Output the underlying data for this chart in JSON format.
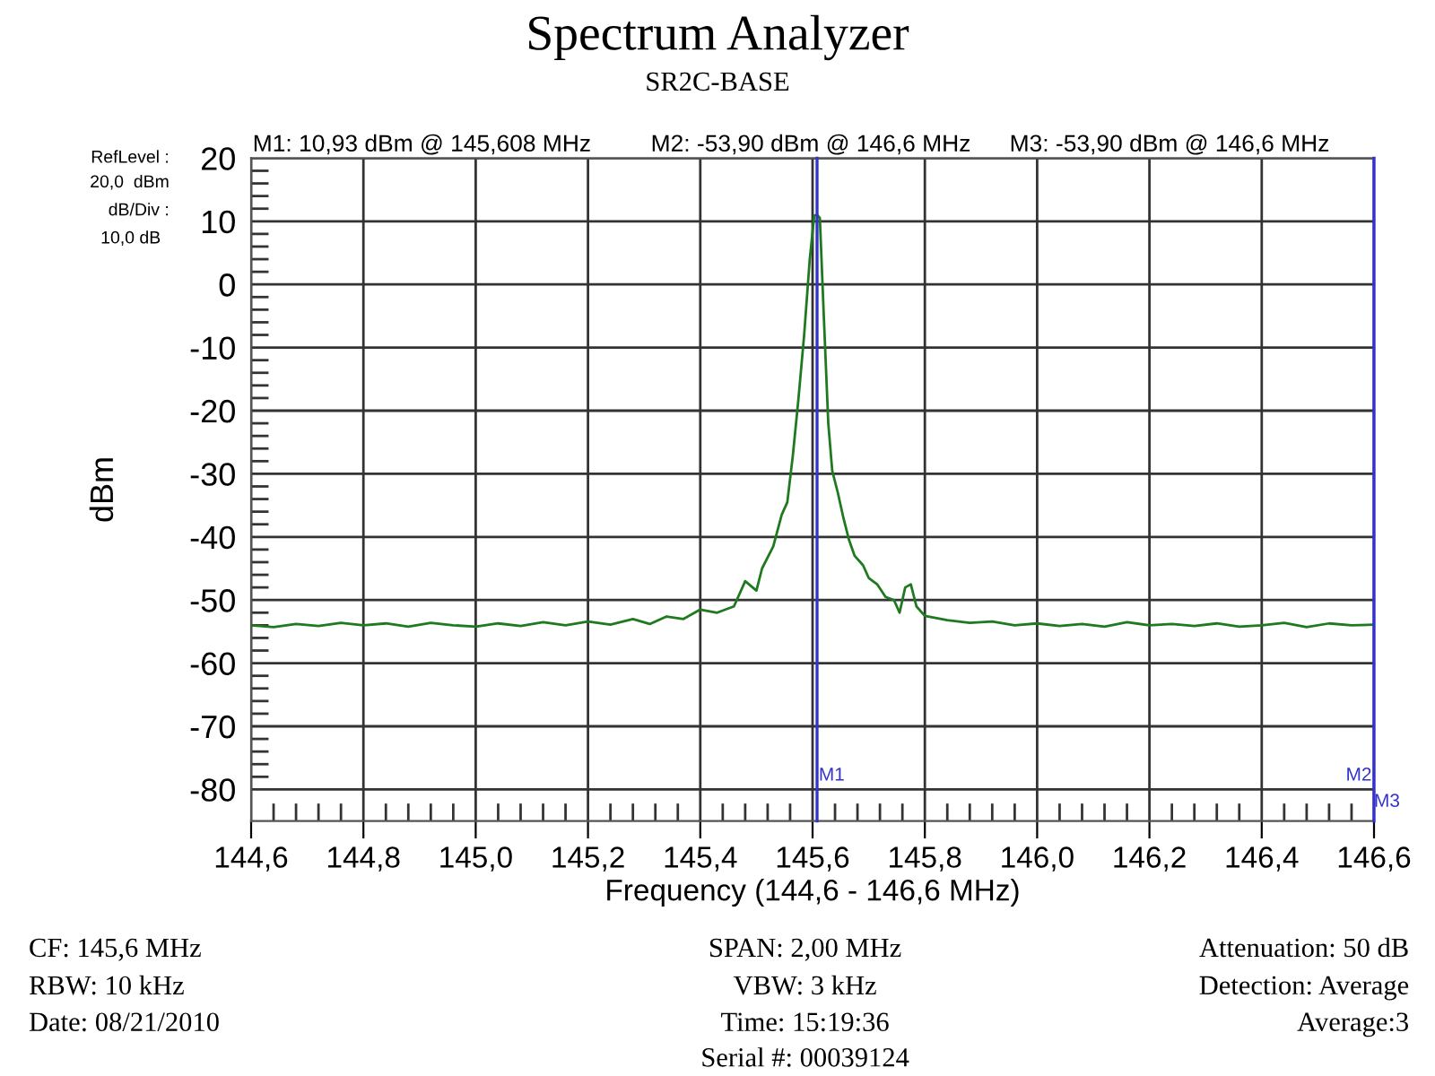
{
  "chart_data": {
    "type": "line",
    "title": "Spectrum Analyzer",
    "subtitle": "SR2C-BASE",
    "xlabel": "Frequency (144,6 - 146,6 MHz)",
    "ylabel": "dBm",
    "x": [
      144.6,
      144.64,
      144.68,
      144.72,
      144.76,
      144.8,
      144.84,
      144.88,
      144.92,
      144.96,
      145.0,
      145.04,
      145.08,
      145.12,
      145.16,
      145.2,
      145.24,
      145.28,
      145.31,
      145.34,
      145.37,
      145.4,
      145.43,
      145.46,
      145.48,
      145.5,
      145.51,
      145.53,
      145.545,
      145.555,
      145.565,
      145.575,
      145.585,
      145.595,
      145.603,
      145.608,
      145.613,
      145.62,
      145.628,
      145.635,
      145.645,
      145.655,
      145.665,
      145.675,
      145.69,
      145.7,
      145.715,
      145.73,
      145.745,
      145.755,
      145.765,
      145.775,
      145.785,
      145.8,
      145.84,
      145.88,
      145.92,
      145.96,
      146.0,
      146.04,
      146.08,
      146.12,
      146.16,
      146.2,
      146.24,
      146.28,
      146.32,
      146.36,
      146.4,
      146.44,
      146.48,
      146.52,
      146.56,
      146.6
    ],
    "series": [
      {
        "color": "#1f7a1f",
        "values": [
          -54.0,
          -54.3,
          -53.8,
          -54.1,
          -53.6,
          -54.0,
          -53.7,
          -54.2,
          -53.6,
          -54.0,
          -54.2,
          -53.7,
          -54.1,
          -53.5,
          -54.0,
          -53.4,
          -53.9,
          -53.0,
          -53.8,
          -52.6,
          -53.0,
          -51.5,
          -52.0,
          -51.0,
          -47.0,
          -48.5,
          -45.0,
          -41.5,
          -36.5,
          -34.5,
          -27.0,
          -18.0,
          -8.0,
          4.0,
          10.9,
          11.0,
          10.5,
          -5.0,
          -22.0,
          -29.5,
          -33.0,
          -37.0,
          -40.5,
          -43.0,
          -44.5,
          -46.5,
          -47.5,
          -49.5,
          -50.0,
          -52.0,
          -48.0,
          -47.5,
          -51.0,
          -52.5,
          -53.2,
          -53.6,
          -53.4,
          -54.0,
          -53.7,
          -54.1,
          -53.8,
          -54.2,
          -53.5,
          -54.0,
          -53.8,
          -54.1,
          -53.7,
          -54.2,
          -54.0,
          -53.6,
          -54.3,
          -53.7,
          -54.0,
          -53.9
        ]
      }
    ],
    "xlim": [
      144.6,
      146.6
    ],
    "ylim": [
      -85,
      20
    ],
    "xticks": [
      {
        "value": 144.6,
        "label": "144,6"
      },
      {
        "value": 144.8,
        "label": "144,8"
      },
      {
        "value": 145.0,
        "label": "145,0"
      },
      {
        "value": 145.2,
        "label": "145,2"
      },
      {
        "value": 145.4,
        "label": "145,4"
      },
      {
        "value": 145.6,
        "label": "145,6"
      },
      {
        "value": 145.8,
        "label": "145,8"
      },
      {
        "value": 146.0,
        "label": "146,0"
      },
      {
        "value": 146.2,
        "label": "146,2"
      },
      {
        "value": 146.4,
        "label": "146,4"
      },
      {
        "value": 146.6,
        "label": "146,6"
      },
      {
        "value": 144.64,
        "label": null
      },
      {
        "value": 144.68,
        "label": null
      },
      {
        "value": 144.72,
        "label": null
      },
      {
        "value": 144.76,
        "label": null
      },
      {
        "value": 144.84,
        "label": null
      },
      {
        "value": 144.88,
        "label": null
      },
      {
        "value": 144.92,
        "label": null
      },
      {
        "value": 144.96,
        "label": null
      },
      {
        "value": 145.04,
        "label": null
      },
      {
        "value": 145.08,
        "label": null
      },
      {
        "value": 145.12,
        "label": null
      },
      {
        "value": 145.16,
        "label": null
      },
      {
        "value": 145.24,
        "label": null
      },
      {
        "value": 145.28,
        "label": null
      },
      {
        "value": 145.32,
        "label": null
      },
      {
        "value": 145.36,
        "label": null
      },
      {
        "value": 145.44,
        "label": null
      },
      {
        "value": 145.48,
        "label": null
      },
      {
        "value": 145.52,
        "label": null
      },
      {
        "value": 145.56,
        "label": null
      },
      {
        "value": 145.64,
        "label": null
      },
      {
        "value": 145.68,
        "label": null
      },
      {
        "value": 145.72,
        "label": null
      },
      {
        "value": 145.76,
        "label": null
      },
      {
        "value": 145.84,
        "label": null
      },
      {
        "value": 145.88,
        "label": null
      },
      {
        "value": 145.92,
        "label": null
      },
      {
        "value": 145.96,
        "label": null
      },
      {
        "value": 146.04,
        "label": null
      },
      {
        "value": 146.08,
        "label": null
      },
      {
        "value": 146.12,
        "label": null
      },
      {
        "value": 146.16,
        "label": null
      },
      {
        "value": 146.24,
        "label": null
      },
      {
        "value": 146.28,
        "label": null
      },
      {
        "value": 146.32,
        "label": null
      },
      {
        "value": 146.36,
        "label": null
      },
      {
        "value": 146.44,
        "label": null
      },
      {
        "value": 146.48,
        "label": null
      },
      {
        "value": 146.52,
        "label": null
      },
      {
        "value": 146.56,
        "label": null
      }
    ],
    "yticks": [
      -80,
      -70,
      -60,
      -50,
      -40,
      -30,
      -20,
      -10,
      0,
      10,
      20,
      {
        "value": -78,
        "label": null
      },
      {
        "value": -76,
        "label": null
      },
      {
        "value": -74,
        "label": null
      },
      {
        "value": -72,
        "label": null
      },
      {
        "value": -68,
        "label": null
      },
      {
        "value": -66,
        "label": null
      },
      {
        "value": -64,
        "label": null
      },
      {
        "value": -62,
        "label": null
      },
      {
        "value": -58,
        "label": null
      },
      {
        "value": -56,
        "label": null
      },
      {
        "value": -54,
        "label": null
      },
      {
        "value": -52,
        "label": null
      },
      {
        "value": -48,
        "label": null
      },
      {
        "value": -46,
        "label": null
      },
      {
        "value": -44,
        "label": null
      },
      {
        "value": -42,
        "label": null
      },
      {
        "value": -38,
        "label": null
      },
      {
        "value": -36,
        "label": null
      },
      {
        "value": -34,
        "label": null
      },
      {
        "value": -32,
        "label": null
      },
      {
        "value": -28,
        "label": null
      },
      {
        "value": -26,
        "label": null
      },
      {
        "value": -24,
        "label": null
      },
      {
        "value": -22,
        "label": null
      },
      {
        "value": -18,
        "label": null
      },
      {
        "value": -16,
        "label": null
      },
      {
        "value": -14,
        "label": null
      },
      {
        "value": -12,
        "label": null
      },
      {
        "value": -8,
        "label": null
      },
      {
        "value": -6,
        "label": null
      },
      {
        "value": -4,
        "label": null
      },
      {
        "value": -2,
        "label": null
      },
      {
        "value": 2,
        "label": null
      },
      {
        "value": 4,
        "label": null
      },
      {
        "value": 6,
        "label": null
      },
      {
        "value": 8,
        "label": null
      },
      {
        "value": 12,
        "label": null
      },
      {
        "value": 14,
        "label": null
      },
      {
        "value": 16,
        "label": null
      },
      {
        "value": 18,
        "label": null
      }
    ],
    "grid": true,
    "marker": "none",
    "line_style": "solid",
    "legend": false,
    "ref_lines": [
      {
        "axis": "x",
        "value": 145.608,
        "label": "M1",
        "color": "#3333cc"
      },
      {
        "axis": "x",
        "value": 146.6,
        "label": "M2",
        "color": "#3333cc"
      }
    ],
    "annotations": [
      "M1: 10,93 dBm @ 145,608 MHz",
      "M2: -53,90 dBm @ 146,6 MHz",
      "M3: -53,90 dBm @ 146,6 MHz",
      "RefLevel :",
      "20,0  dBm",
      "dB/Div :",
      "10,0 dB",
      "CF: 145,6 MHz",
      "RBW: 10 kHz",
      "Date: 08/21/2010",
      "SPAN: 2,00 MHz",
      "VBW: 3 kHz",
      "Time: 15:19:36",
      "Serial #: 00039124",
      "Attenuation: 50 dB",
      "Detection: Average",
      "Average:3",
      {
        "text": "M3",
        "x": 146.6,
        "y": -82
      }
    ]
  }
}
